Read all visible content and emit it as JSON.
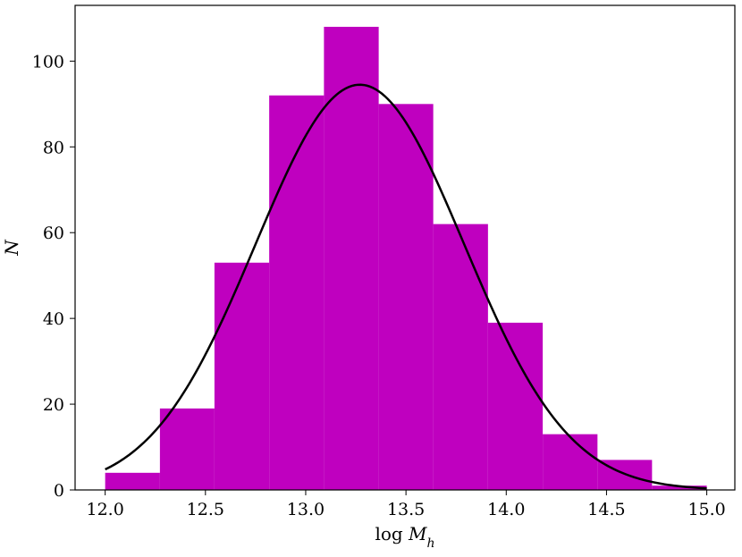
{
  "chart_data": {
    "type": "bar",
    "subtype": "histogram",
    "xlabel_prefix": "log ",
    "xlabel_var": "M",
    "xlabel_sub": "h",
    "ylabel": "N",
    "xlim": [
      11.85,
      15.14
    ],
    "ylim": [
      0,
      113
    ],
    "xticks": [
      12.0,
      12.5,
      13.0,
      13.5,
      14.0,
      14.5,
      15.0
    ],
    "xtick_labels": [
      "12.0",
      "12.5",
      "13.0",
      "13.5",
      "14.0",
      "14.5",
      "15.0"
    ],
    "yticks": [
      0,
      20,
      40,
      60,
      80,
      100
    ],
    "ytick_labels": [
      "0",
      "20",
      "40",
      "60",
      "80",
      "100"
    ],
    "bin_edges": [
      12.0,
      12.273,
      12.545,
      12.818,
      13.091,
      13.364,
      13.636,
      13.909,
      14.182,
      14.455,
      14.727,
      15.0
    ],
    "counts": [
      4,
      19,
      53,
      92,
      108,
      90,
      62,
      39,
      13,
      7,
      1
    ],
    "bar_color": "#bf00bf",
    "fit_curve": {
      "type": "gaussian",
      "mean": 13.27,
      "sigma": 0.52,
      "amplitude": 94.5,
      "color": "#000000"
    },
    "grid": false,
    "legend": "none"
  }
}
